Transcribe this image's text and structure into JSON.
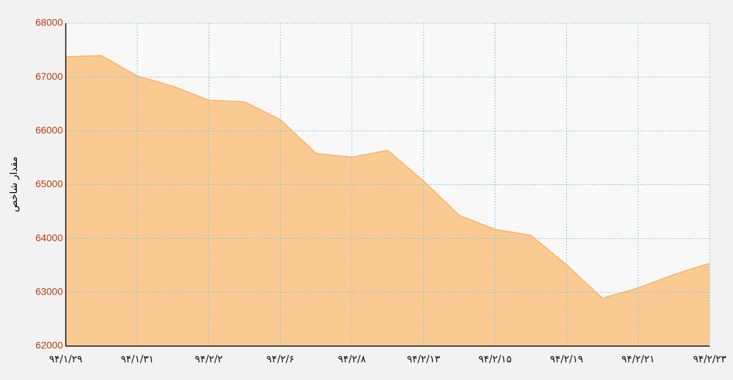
{
  "chart_data": {
    "type": "area",
    "y_label": "مقدار شاخص",
    "categories": [
      "۹۴/۱/۲۹",
      null,
      "۹۴/۱/۳۱",
      null,
      "۹۴/۲/۲",
      null,
      "۹۴/۲/۶",
      null,
      "۹۴/۲/۸",
      null,
      "۹۴/۲/۱۳",
      null,
      "۹۴/۲/۱۵",
      null,
      "۹۴/۲/۱۹",
      null,
      "۹۴/۲/۲۱",
      null,
      "۹۴/۲/۲۳"
    ],
    "values": [
      67380,
      67400,
      67020,
      66830,
      66570,
      66540,
      66210,
      65580,
      65510,
      65640,
      65070,
      64430,
      64170,
      64060,
      63510,
      62890,
      63080,
      63330,
      63540
    ],
    "color": "#f9cb93",
    "line_color": "#f5b46a",
    "ylim": [
      62000,
      68000
    ],
    "yticks": [
      62000,
      63000,
      64000,
      65000,
      66000,
      67000,
      68000
    ],
    "grid": true
  }
}
